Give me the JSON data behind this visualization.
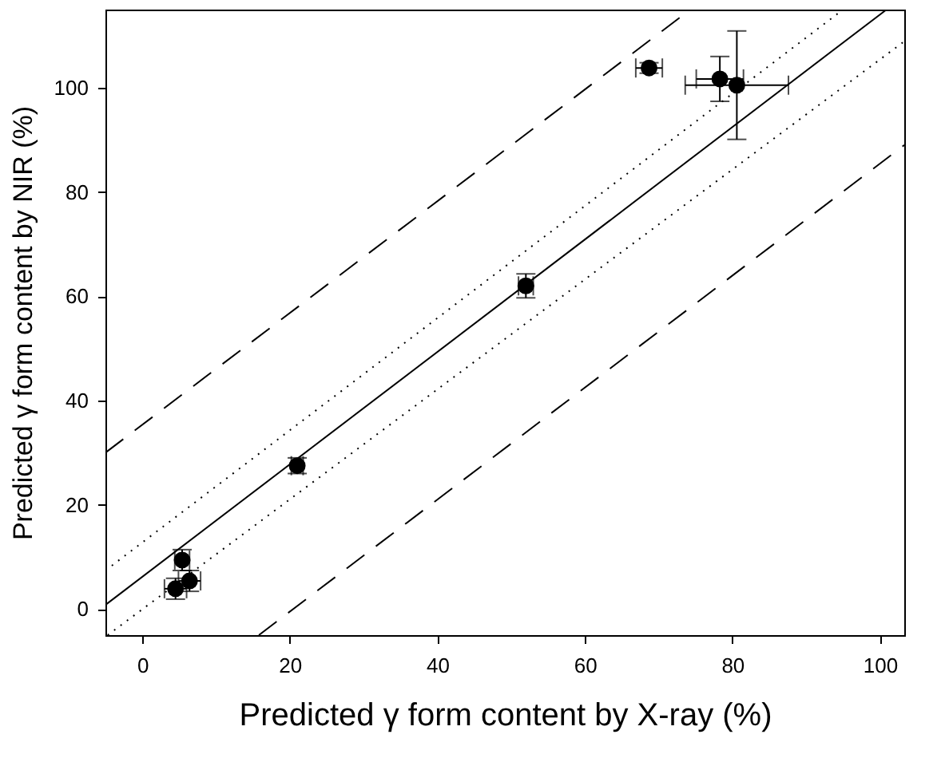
{
  "chart_data": {
    "type": "scatter",
    "xlabel": "Predicted γ form content by X-ray (%)",
    "ylabel": "Predicted γ form content  by NIR (%)",
    "xlim": [
      -5,
      103.3
    ],
    "ylim": [
      -5,
      115
    ],
    "xticks": [
      0,
      20,
      40,
      60,
      80,
      100
    ],
    "yticks": [
      0,
      20,
      40,
      60,
      80,
      100
    ],
    "grid": false,
    "series": [
      {
        "color": "#000000",
        "marker": "circle",
        "x": [
          4.5,
          5.4,
          6.4,
          21,
          52,
          68.7,
          78.3,
          80.6
        ],
        "values": [
          3.9,
          9.4,
          5.4,
          27.5,
          62,
          103.8,
          101.7,
          100.5
        ],
        "errors": [
          2,
          2,
          2,
          1.5,
          2.3,
          1,
          4.3,
          10.4
        ],
        "xerrors": [
          1.5,
          1,
          1.5,
          0.8,
          1,
          1.8,
          3.2,
          7
        ]
      },
      {
        "type": "line",
        "color": "#000000",
        "line_style": "solid",
        "marker": "none",
        "x": [
          -5,
          100.9
        ],
        "values": [
          0.8,
          115
        ]
      },
      {
        "type": "line",
        "color": "#000000",
        "line_style": "dashed",
        "marker": "none",
        "x": [
          -5,
          74.3
        ],
        "values": [
          30,
          115
        ]
      },
      {
        "type": "line",
        "color": "#000000",
        "line_style": "dashed",
        "marker": "none",
        "x": [
          15.8,
          103.3
        ],
        "values": [
          -5,
          89
        ]
      },
      {
        "type": "line",
        "color": "#000000",
        "line_style": "dotted",
        "marker": "none",
        "x": [
          -5,
          95
        ],
        "values": [
          7.4,
          115
        ]
      },
      {
        "type": "line",
        "color": "#000000",
        "line_style": "dotted",
        "marker": "none",
        "x": [
          -4.7,
          103.3
        ],
        "values": [
          -5,
          108.9
        ]
      }
    ]
  }
}
